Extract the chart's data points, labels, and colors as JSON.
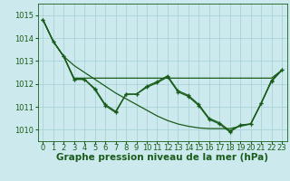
{
  "background_color": "#cce9ed",
  "grid_color": "#aad3d8",
  "dark_green": "#1a5c1a",
  "xlabel": "Graphe pression niveau de la mer (hPa)",
  "xlabel_fontsize": 7.5,
  "ylim": [
    1009.5,
    1015.5
  ],
  "yticks": [
    1010,
    1011,
    1012,
    1013,
    1014,
    1015
  ],
  "xticks": [
    0,
    1,
    2,
    3,
    4,
    5,
    6,
    7,
    8,
    9,
    10,
    11,
    12,
    13,
    14,
    15,
    16,
    17,
    18,
    19,
    20,
    21,
    22,
    23
  ],
  "series_zigzag1": [
    1014.8,
    1013.85,
    1013.2,
    1012.2,
    1012.2,
    1011.75,
    1011.05,
    1010.75,
    1011.55,
    1011.55,
    1011.85,
    1012.05,
    1012.3,
    1011.65,
    1011.45,
    1011.05,
    1010.45,
    1010.25,
    1009.9,
    1010.2,
    1010.25,
    1011.15,
    1012.1,
    1012.6
  ],
  "series_zigzag2": [
    1014.8,
    1013.85,
    1013.2,
    1012.2,
    1012.2,
    1011.8,
    1011.1,
    1010.8,
    1011.55,
    1011.55,
    1011.9,
    1012.1,
    1012.35,
    1011.7,
    1011.5,
    1011.1,
    1010.5,
    1010.3,
    1009.95,
    1010.2,
    1010.25,
    1011.15,
    1012.15,
    1012.6
  ],
  "series_flat": [
    1014.8,
    1013.85,
    1013.2,
    1012.25,
    1012.25,
    1012.25,
    1012.25,
    1012.25,
    1012.25,
    1012.25,
    1012.25,
    1012.25,
    1012.25,
    1012.25,
    1012.25,
    1012.25,
    1012.25,
    1012.25,
    1012.25,
    1012.25,
    1012.25,
    1012.25,
    1012.25,
    1012.6
  ],
  "series_slant": [
    1014.8,
    1013.85,
    1013.2,
    1012.8,
    1012.5,
    1012.2,
    1011.9,
    1011.6,
    1011.35,
    1011.1,
    1010.85,
    1010.6,
    1010.4,
    1010.25,
    1010.15,
    1010.08,
    1010.05,
    1010.05,
    1010.05,
    1010.15,
    1010.25,
    1011.15,
    1012.15,
    1012.6
  ],
  "tick_fontsize": 6,
  "lw": 0.9
}
